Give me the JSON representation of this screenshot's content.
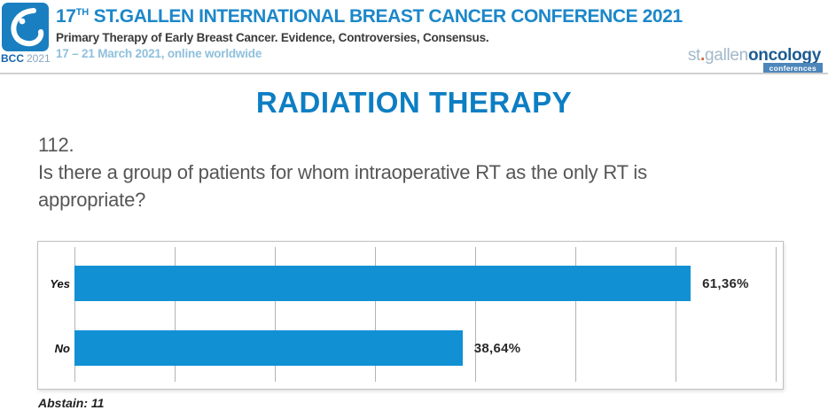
{
  "header": {
    "logo": {
      "bcc": "BCC",
      "year": "2021"
    },
    "title_prefix": "17",
    "title_superscript": "TH",
    "title_rest": " ST.GALLEN INTERNATIONAL BREAST CANCER CONFERENCE 2021",
    "subtitle": "Primary Therapy of Early Breast Cancer. Evidence, Controversies, Consensus.",
    "date_line": "17 – 21 March 2021, online worldwide",
    "right_logo": {
      "part1": "st",
      "dot": ".",
      "part2": "gallen",
      "part3": "oncology",
      "tagline": "conferences"
    }
  },
  "section_title": "RADIATION THERAPY",
  "question": {
    "number": "112.",
    "text": "Is there a group of patients for whom intraoperative RT as the only RT is appropriate?"
  },
  "chart_data": {
    "type": "bar",
    "orientation": "horizontal",
    "title": "",
    "xlabel": "",
    "ylabel": "",
    "categories": [
      "Yes",
      "No"
    ],
    "values": [
      61.36,
      38.64
    ],
    "value_labels": [
      "61,36%",
      "38,64%"
    ],
    "xlim": [
      0,
      70
    ],
    "gridline_interval": 10,
    "grid": true,
    "legend": false,
    "bar_color": "#1290d4"
  },
  "footnote": "Abstain: 11",
  "colors": {
    "accent_blue": "#1290d4",
    "header_title_blue": "#1c87c9",
    "section_title_blue": "#0d7ec3",
    "date_light_blue": "#8fc0dc",
    "logo_blue": "#1a7fc0"
  }
}
